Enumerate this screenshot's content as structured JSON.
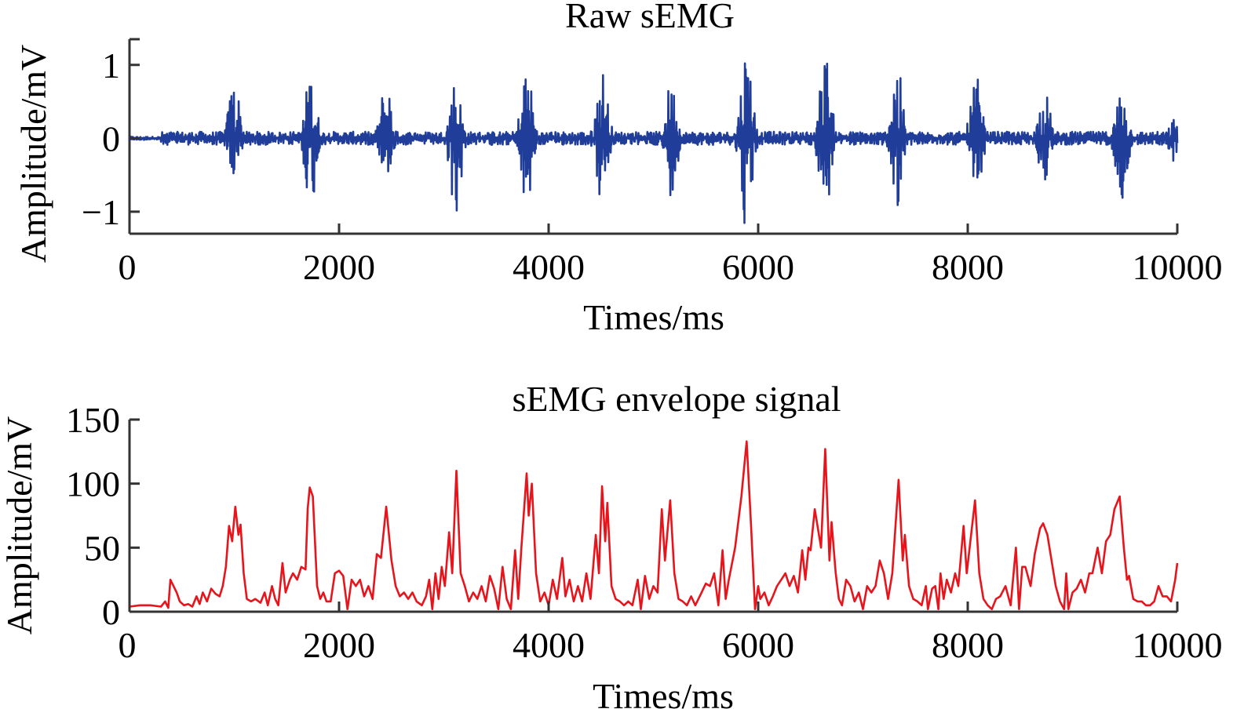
{
  "chart_data": [
    {
      "type": "line",
      "title": "Raw sEMG",
      "xlabel": "Times/ms",
      "ylabel": "Amplitude/mV",
      "xlim": [
        0,
        10000
      ],
      "ylim": [
        -1.3,
        1.35
      ],
      "xticks": [
        "0",
        "2000",
        "4000",
        "6000",
        "8000",
        "10000"
      ],
      "xtick_values": [
        0,
        2000,
        4000,
        6000,
        8000,
        10000
      ],
      "yticks": [
        "−1",
        "0",
        "1"
      ],
      "ytick_values": [
        -1,
        0,
        1
      ],
      "grid": false,
      "color": "#1f3d99",
      "baseline_noise_amplitude": 0.15,
      "bursts": [
        {
          "t": 1000,
          "max": 0.85,
          "min": -0.65
        },
        {
          "t": 1730,
          "max": 0.95,
          "min": -0.95
        },
        {
          "t": 2450,
          "max": 0.85,
          "min": -0.55
        },
        {
          "t": 3110,
          "max": 0.85,
          "min": -1.1
        },
        {
          "t": 3790,
          "max": 1.05,
          "min": -1.0
        },
        {
          "t": 4510,
          "max": 1.0,
          "min": -0.95
        },
        {
          "t": 5170,
          "max": 0.8,
          "min": -0.8
        },
        {
          "t": 5890,
          "max": 1.35,
          "min": -1.3
        },
        {
          "t": 6640,
          "max": 1.2,
          "min": -1.1
        },
        {
          "t": 7320,
          "max": 1.1,
          "min": -0.95
        },
        {
          "t": 8080,
          "max": 0.85,
          "min": -0.85
        },
        {
          "t": 8730,
          "max": 0.7,
          "min": -0.6
        },
        {
          "t": 9470,
          "max": 0.75,
          "min": -0.85
        },
        {
          "t": 9980,
          "max": 0.3,
          "min": -0.35
        }
      ]
    },
    {
      "type": "line",
      "title": "sEMG envelope signal",
      "xlabel": "Times/ms",
      "ylabel": "Amplitude/mV",
      "xlim": [
        0,
        10000
      ],
      "ylim": [
        0,
        150
      ],
      "xticks": [
        "0",
        "2000",
        "4000",
        "6000",
        "8000",
        "10000"
      ],
      "xtick_values": [
        0,
        2000,
        4000,
        6000,
        8000,
        10000
      ],
      "yticks": [
        "0",
        "50",
        "100",
        "150"
      ],
      "ytick_values": [
        0,
        50,
        100,
        150
      ],
      "grid": false,
      "color": "#e8141c",
      "points": [
        [
          0,
          4
        ],
        [
          100,
          5
        ],
        [
          200,
          5
        ],
        [
          300,
          4
        ],
        [
          340,
          8
        ],
        [
          370,
          3
        ],
        [
          390,
          25
        ],
        [
          420,
          20
        ],
        [
          450,
          15
        ],
        [
          480,
          8
        ],
        [
          520,
          5
        ],
        [
          560,
          6
        ],
        [
          600,
          4
        ],
        [
          640,
          12
        ],
        [
          670,
          6
        ],
        [
          700,
          15
        ],
        [
          740,
          8
        ],
        [
          780,
          18
        ],
        [
          820,
          14
        ],
        [
          860,
          12
        ],
        [
          890,
          20
        ],
        [
          920,
          35
        ],
        [
          950,
          67
        ],
        [
          980,
          55
        ],
        [
          1010,
          82
        ],
        [
          1040,
          60
        ],
        [
          1060,
          68
        ],
        [
          1090,
          30
        ],
        [
          1120,
          10
        ],
        [
          1160,
          8
        ],
        [
          1200,
          10
        ],
        [
          1250,
          7
        ],
        [
          1290,
          15
        ],
        [
          1320,
          5
        ],
        [
          1360,
          20
        ],
        [
          1390,
          10
        ],
        [
          1420,
          5
        ],
        [
          1460,
          38
        ],
        [
          1490,
          15
        ],
        [
          1530,
          25
        ],
        [
          1560,
          30
        ],
        [
          1600,
          25
        ],
        [
          1640,
          35
        ],
        [
          1680,
          33
        ],
        [
          1700,
          80
        ],
        [
          1720,
          97
        ],
        [
          1750,
          90
        ],
        [
          1790,
          20
        ],
        [
          1820,
          10
        ],
        [
          1850,
          15
        ],
        [
          1880,
          8
        ],
        [
          1920,
          8
        ],
        [
          1960,
          30
        ],
        [
          2000,
          32
        ],
        [
          2040,
          28
        ],
        [
          2080,
          2
        ],
        [
          2120,
          25
        ],
        [
          2160,
          20
        ],
        [
          2200,
          25
        ],
        [
          2240,
          12
        ],
        [
          2280,
          20
        ],
        [
          2320,
          10
        ],
        [
          2360,
          45
        ],
        [
          2400,
          42
        ],
        [
          2450,
          82
        ],
        [
          2500,
          40
        ],
        [
          2540,
          20
        ],
        [
          2580,
          12
        ],
        [
          2620,
          15
        ],
        [
          2660,
          10
        ],
        [
          2700,
          15
        ],
        [
          2740,
          8
        ],
        [
          2790,
          5
        ],
        [
          2830,
          12
        ],
        [
          2860,
          25
        ],
        [
          2890,
          2
        ],
        [
          2920,
          30
        ],
        [
          2950,
          10
        ],
        [
          2980,
          35
        ],
        [
          3010,
          20
        ],
        [
          3050,
          62
        ],
        [
          3080,
          30
        ],
        [
          3120,
          110
        ],
        [
          3160,
          30
        ],
        [
          3200,
          20
        ],
        [
          3240,
          8
        ],
        [
          3280,
          15
        ],
        [
          3320,
          10
        ],
        [
          3360,
          20
        ],
        [
          3400,
          8
        ],
        [
          3440,
          28
        ],
        [
          3480,
          18
        ],
        [
          3520,
          2
        ],
        [
          3560,
          35
        ],
        [
          3600,
          10
        ],
        [
          3640,
          2
        ],
        [
          3680,
          48
        ],
        [
          3710,
          10
        ],
        [
          3740,
          50
        ],
        [
          3790,
          108
        ],
        [
          3810,
          75
        ],
        [
          3840,
          100
        ],
        [
          3880,
          30
        ],
        [
          3920,
          8
        ],
        [
          3960,
          15
        ],
        [
          4000,
          5
        ],
        [
          4040,
          25
        ],
        [
          4080,
          10
        ],
        [
          4130,
          42
        ],
        [
          4160,
          12
        ],
        [
          4200,
          25
        ],
        [
          4240,
          8
        ],
        [
          4280,
          20
        ],
        [
          4320,
          8
        ],
        [
          4360,
          30
        ],
        [
          4400,
          10
        ],
        [
          4450,
          60
        ],
        [
          4480,
          30
        ],
        [
          4510,
          98
        ],
        [
          4540,
          55
        ],
        [
          4560,
          85
        ],
        [
          4600,
          20
        ],
        [
          4640,
          10
        ],
        [
          4680,
          8
        ],
        [
          4720,
          5
        ],
        [
          4760,
          8
        ],
        [
          4800,
          5
        ],
        [
          4850,
          25
        ],
        [
          4880,
          2
        ],
        [
          4920,
          28
        ],
        [
          4960,
          10
        ],
        [
          5000,
          20
        ],
        [
          5040,
          15
        ],
        [
          5080,
          80
        ],
        [
          5110,
          40
        ],
        [
          5160,
          87
        ],
        [
          5200,
          30
        ],
        [
          5240,
          10
        ],
        [
          5280,
          8
        ],
        [
          5320,
          5
        ],
        [
          5360,
          12
        ],
        [
          5400,
          5
        ],
        [
          5460,
          15
        ],
        [
          5500,
          22
        ],
        [
          5540,
          20
        ],
        [
          5580,
          30
        ],
        [
          5620,
          5
        ],
        [
          5660,
          48
        ],
        [
          5690,
          10
        ],
        [
          5720,
          25
        ],
        [
          5780,
          50
        ],
        [
          5840,
          90
        ],
        [
          5890,
          133
        ],
        [
          5930,
          70
        ],
        [
          5970,
          2
        ],
        [
          6000,
          20
        ],
        [
          6020,
          10
        ],
        [
          6060,
          15
        ],
        [
          6100,
          5
        ],
        [
          6140,
          12
        ],
        [
          6180,
          20
        ],
        [
          6220,
          25
        ],
        [
          6260,
          30
        ],
        [
          6300,
          20
        ],
        [
          6340,
          28
        ],
        [
          6380,
          15
        ],
        [
          6420,
          48
        ],
        [
          6450,
          25
        ],
        [
          6480,
          50
        ],
        [
          6500,
          48
        ],
        [
          6540,
          80
        ],
        [
          6600,
          50
        ],
        [
          6640,
          127
        ],
        [
          6680,
          40
        ],
        [
          6700,
          70
        ],
        [
          6740,
          30
        ],
        [
          6770,
          10
        ],
        [
          6800,
          5
        ],
        [
          6840,
          25
        ],
        [
          6880,
          20
        ],
        [
          6920,
          8
        ],
        [
          6960,
          15
        ],
        [
          7000,
          2
        ],
        [
          7040,
          20
        ],
        [
          7080,
          15
        ],
        [
          7120,
          20
        ],
        [
          7160,
          40
        ],
        [
          7200,
          30
        ],
        [
          7240,
          10
        ],
        [
          7280,
          30
        ],
        [
          7340,
          103
        ],
        [
          7380,
          40
        ],
        [
          7400,
          60
        ],
        [
          7440,
          20
        ],
        [
          7480,
          10
        ],
        [
          7520,
          8
        ],
        [
          7560,
          5
        ],
        [
          7600,
          20
        ],
        [
          7620,
          2
        ],
        [
          7660,
          18
        ],
        [
          7690,
          20
        ],
        [
          7720,
          2
        ],
        [
          7740,
          30
        ],
        [
          7770,
          10
        ],
        [
          7800,
          25
        ],
        [
          7840,
          15
        ],
        [
          7880,
          30
        ],
        [
          7910,
          20
        ],
        [
          7960,
          67
        ],
        [
          7990,
          30
        ],
        [
          8070,
          87
        ],
        [
          8110,
          30
        ],
        [
          8150,
          10
        ],
        [
          8190,
          5
        ],
        [
          8230,
          2
        ],
        [
          8270,
          10
        ],
        [
          8310,
          12
        ],
        [
          8360,
          20
        ],
        [
          8410,
          5
        ],
        [
          8460,
          50
        ],
        [
          8490,
          2
        ],
        [
          8520,
          35
        ],
        [
          8550,
          35
        ],
        [
          8600,
          20
        ],
        [
          8640,
          45
        ],
        [
          8690,
          65
        ],
        [
          8720,
          69
        ],
        [
          8760,
          60
        ],
        [
          8800,
          40
        ],
        [
          8840,
          20
        ],
        [
          8880,
          8
        ],
        [
          8920,
          2
        ],
        [
          8940,
          30
        ],
        [
          8960,
          2
        ],
        [
          9000,
          15
        ],
        [
          9040,
          18
        ],
        [
          9080,
          25
        ],
        [
          9120,
          15
        ],
        [
          9160,
          30
        ],
        [
          9190,
          30
        ],
        [
          9240,
          50
        ],
        [
          9280,
          30
        ],
        [
          9320,
          55
        ],
        [
          9360,
          60
        ],
        [
          9400,
          80
        ],
        [
          9450,
          90
        ],
        [
          9490,
          50
        ],
        [
          9520,
          25
        ],
        [
          9540,
          28
        ],
        [
          9580,
          10
        ],
        [
          9620,
          8
        ],
        [
          9660,
          8
        ],
        [
          9700,
          5
        ],
        [
          9740,
          5
        ],
        [
          9780,
          8
        ],
        [
          9820,
          20
        ],
        [
          9860,
          12
        ],
        [
          9900,
          12
        ],
        [
          9940,
          8
        ],
        [
          9980,
          25
        ],
        [
          10000,
          38
        ]
      ]
    }
  ],
  "axis_color": "#333333"
}
